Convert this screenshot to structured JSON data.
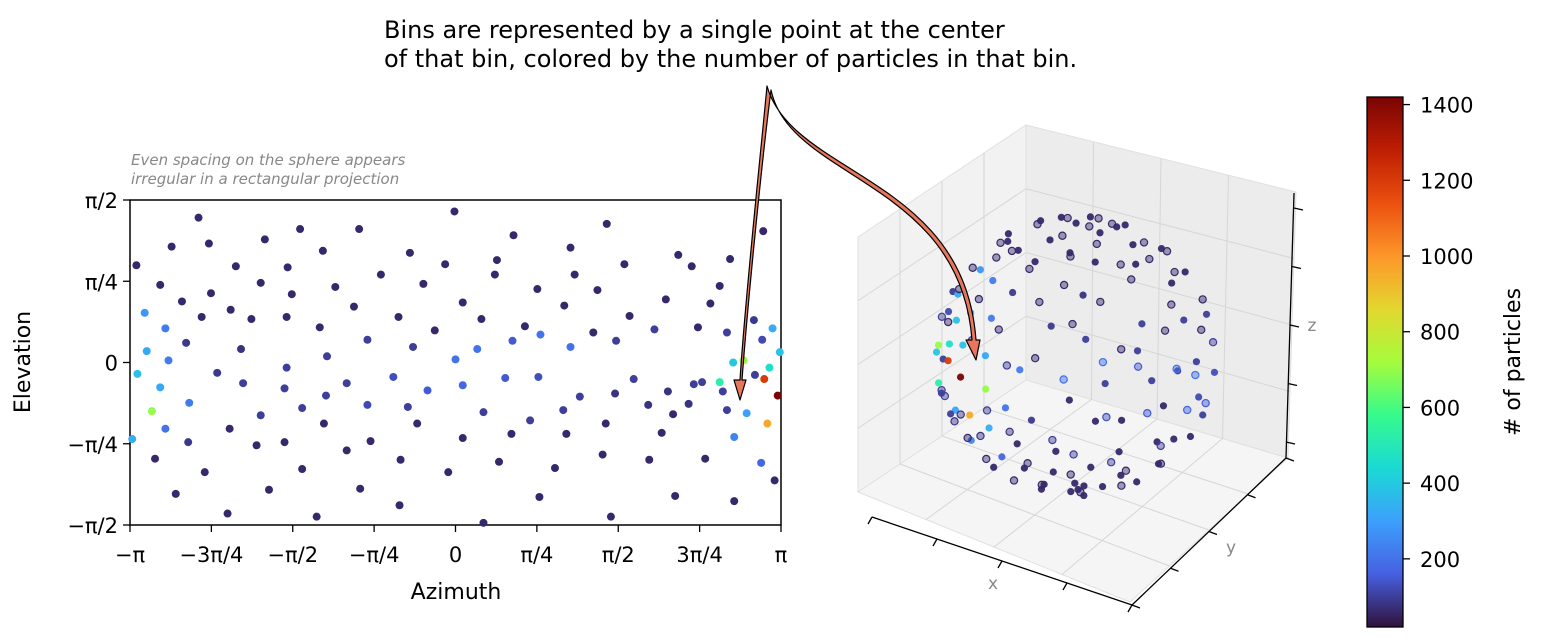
{
  "annotation": {
    "line1": "Bins are represented by a single point at the center",
    "line2": "of that bin, colored by the number of particles in that bin."
  },
  "left_panel": {
    "note_line1": "Even spacing on the sphere appears",
    "note_line2": "irregular in a rectangular projection"
  },
  "right_panel": {
    "xlabel": "x",
    "ylabel": "y",
    "zlabel": "z"
  },
  "colorbar": {
    "label": "# of particles",
    "ticks": [
      "200",
      "400",
      "600",
      "800",
      "1000",
      "1200",
      "1400"
    ],
    "range": [
      20,
      1420
    ]
  },
  "chart_data": [
    {
      "type": "scatter",
      "title": "",
      "xlabel": "Azimuth",
      "ylabel": "Elevation",
      "xlim": [
        -3.1416,
        3.1416
      ],
      "ylim": [
        -1.5708,
        1.5708
      ],
      "xtick_labels": [
        "−π",
        "−3π/4",
        "−π/2",
        "−π/4",
        "0",
        "π/4",
        "π/2",
        "3π/4",
        "π"
      ],
      "ytick_labels": [
        "−π/2",
        "−π/4",
        "0",
        "π/4",
        "π/2"
      ],
      "color_scale": "turbo",
      "points": [
        {
          "x": -3.08,
          "y": 0.94,
          "c": 60
        },
        {
          "x": -2.85,
          "y": 0.75,
          "c": 60
        },
        {
          "x": -2.74,
          "y": 1.12,
          "c": 60
        },
        {
          "x": -2.48,
          "y": 1.4,
          "c": 60
        },
        {
          "x": -2.38,
          "y": 1.15,
          "c": 60
        },
        {
          "x": -2.64,
          "y": 0.59,
          "c": 60
        },
        {
          "x": -2.36,
          "y": 0.67,
          "c": 60
        },
        {
          "x": -2.12,
          "y": 0.93,
          "c": 60
        },
        {
          "x": -1.84,
          "y": 1.19,
          "c": 60
        },
        {
          "x": -2.45,
          "y": 0.44,
          "c": 60
        },
        {
          "x": -2.17,
          "y": 0.51,
          "c": 60
        },
        {
          "x": -1.88,
          "y": 0.77,
          "c": 60
        },
        {
          "x": -1.62,
          "y": 0.92,
          "c": 60
        },
        {
          "x": -1.28,
          "y": 1.08,
          "c": 60
        },
        {
          "x": -0.93,
          "y": 1.29,
          "c": 60
        },
        {
          "x": -0.01,
          "y": 1.46,
          "c": 60
        },
        {
          "x": 0.56,
          "y": 1.23,
          "c": 60
        },
        {
          "x": 1.11,
          "y": 1.11,
          "c": 60
        },
        {
          "x": 1.46,
          "y": 1.34,
          "c": 60
        },
        {
          "x": 2.28,
          "y": 0.93,
          "c": 60
        },
        {
          "x": 2.97,
          "y": 1.27,
          "c": 60
        },
        {
          "x": -3.0,
          "y": 0.48,
          "c": 280
        },
        {
          "x": -2.8,
          "y": 0.33,
          "c": 220
        },
        {
          "x": -2.6,
          "y": 0.19,
          "c": 90
        },
        {
          "x": -2.98,
          "y": 0.11,
          "c": 320
        },
        {
          "x": -3.07,
          "y": -0.11,
          "c": 380
        },
        {
          "x": -2.85,
          "y": -0.24,
          "c": 320
        },
        {
          "x": -2.77,
          "y": 0.02,
          "c": 220
        },
        {
          "x": -2.57,
          "y": -0.39,
          "c": 220
        },
        {
          "x": -2.93,
          "y": -0.47,
          "c": 700
        },
        {
          "x": -3.12,
          "y": -0.74,
          "c": 330
        },
        {
          "x": -2.8,
          "y": -0.64,
          "c": 200
        },
        {
          "x": -2.58,
          "y": -0.77,
          "c": 90
        },
        {
          "x": -2.9,
          "y": -0.93,
          "c": 60
        },
        {
          "x": -2.7,
          "y": -1.27,
          "c": 60
        },
        {
          "x": -2.42,
          "y": -1.06,
          "c": 60
        },
        {
          "x": -2.2,
          "y": -1.46,
          "c": 60
        },
        {
          "x": -1.8,
          "y": -1.23,
          "c": 60
        },
        {
          "x": -1.34,
          "y": -1.49,
          "c": 60
        },
        {
          "x": -0.92,
          "y": -1.22,
          "c": 60
        },
        {
          "x": -0.54,
          "y": -1.38,
          "c": 60
        },
        {
          "x": 0.27,
          "y": -1.55,
          "c": 60
        },
        {
          "x": 0.81,
          "y": -1.3,
          "c": 60
        },
        {
          "x": 1.5,
          "y": -1.49,
          "c": 60
        },
        {
          "x": 2.12,
          "y": -1.29,
          "c": 60
        },
        {
          "x": 2.69,
          "y": -1.34,
          "c": 60
        },
        {
          "x": 2.95,
          "y": -0.97,
          "c": 170
        },
        {
          "x": 3.08,
          "y": -1.14,
          "c": 60
        },
        {
          "x": 2.41,
          "y": -0.93,
          "c": 60
        },
        {
          "x": 1.87,
          "y": -0.94,
          "c": 60
        },
        {
          "x": 1.42,
          "y": -0.89,
          "c": 60
        },
        {
          "x": 0.96,
          "y": -1.02,
          "c": 60
        },
        {
          "x": 0.42,
          "y": -0.96,
          "c": 60
        },
        {
          "x": -0.07,
          "y": -1.06,
          "c": 60
        },
        {
          "x": -0.53,
          "y": -0.94,
          "c": 60
        },
        {
          "x": -1.05,
          "y": -0.85,
          "c": 60
        },
        {
          "x": -1.48,
          "y": -1.03,
          "c": 60
        },
        {
          "x": -1.92,
          "y": -0.8,
          "c": 60
        },
        {
          "x": -2.18,
          "y": -0.64,
          "c": 60
        },
        {
          "x": -1.65,
          "y": -0.77,
          "c": 60
        },
        {
          "x": -1.27,
          "y": -0.59,
          "c": 60
        },
        {
          "x": -0.82,
          "y": -0.76,
          "c": 60
        },
        {
          "x": -0.37,
          "y": -0.59,
          "c": 60
        },
        {
          "x": 0.07,
          "y": -0.73,
          "c": 60
        },
        {
          "x": 0.54,
          "y": -0.69,
          "c": 60
        },
        {
          "x": 1.07,
          "y": -0.69,
          "c": 60
        },
        {
          "x": 1.45,
          "y": -0.59,
          "c": 60
        },
        {
          "x": 1.99,
          "y": -0.68,
          "c": 60
        },
        {
          "x": 2.25,
          "y": -0.4,
          "c": 80
        },
        {
          "x": 2.69,
          "y": -0.72,
          "c": 240
        },
        {
          "x": 2.81,
          "y": -0.49,
          "c": 300
        },
        {
          "x": 3.01,
          "y": -0.59,
          "c": 960
        },
        {
          "x": 2.89,
          "y": -0.12,
          "c": 100
        },
        {
          "x": 2.58,
          "y": -0.28,
          "c": 100
        },
        {
          "x": 2.38,
          "y": -0.19,
          "c": 100
        },
        {
          "x": 2.55,
          "y": -0.19,
          "c": 520
        },
        {
          "x": 2.68,
          "y": 0.0,
          "c": 390
        },
        {
          "x": 2.88,
          "y": 0.41,
          "c": 90
        },
        {
          "x": 2.96,
          "y": 0.22,
          "c": 120
        },
        {
          "x": 3.13,
          "y": 0.1,
          "c": 380
        },
        {
          "x": 3.06,
          "y": 0.33,
          "c": 330
        },
        {
          "x": 3.03,
          "y": -0.05,
          "c": 460
        },
        {
          "x": 3.11,
          "y": -0.32,
          "c": 1420
        },
        {
          "x": 2.98,
          "y": -0.16,
          "c": 1200
        },
        {
          "x": 2.78,
          "y": 0.02,
          "c": 700
        },
        {
          "x": 2.62,
          "y": -0.46,
          "c": 100
        },
        {
          "x": 2.3,
          "y": -0.21,
          "c": 100
        },
        {
          "x": 2.05,
          "y": -0.28,
          "c": 80
        },
        {
          "x": 1.72,
          "y": -0.16,
          "c": 100
        },
        {
          "x": 1.2,
          "y": -0.33,
          "c": 100
        },
        {
          "x": 0.8,
          "y": -0.14,
          "c": 130
        },
        {
          "x": 0.48,
          "y": -0.15,
          "c": 150
        },
        {
          "x": 0.07,
          "y": -0.22,
          "c": 170
        },
        {
          "x": -0.27,
          "y": -0.27,
          "c": 150
        },
        {
          "x": -0.6,
          "y": -0.14,
          "c": 130
        },
        {
          "x": -0.85,
          "y": -0.41,
          "c": 120
        },
        {
          "x": -1.25,
          "y": -0.32,
          "c": 100
        },
        {
          "x": -1.65,
          "y": -0.25,
          "c": 100
        },
        {
          "x": -2.05,
          "y": -0.2,
          "c": 100
        },
        {
          "x": -2.3,
          "y": -0.1,
          "c": 90
        },
        {
          "x": -1.88,
          "y": -0.51,
          "c": 100
        },
        {
          "x": -1.48,
          "y": -0.44,
          "c": 100
        },
        {
          "x": -1.05,
          "y": -0.2,
          "c": 100
        },
        {
          "x": -0.46,
          "y": -0.43,
          "c": 100
        },
        {
          "x": 0.27,
          "y": -0.48,
          "c": 100
        },
        {
          "x": 0.72,
          "y": -0.56,
          "c": 100
        },
        {
          "x": 1.04,
          "y": -0.46,
          "c": 100
        },
        {
          "x": 1.54,
          "y": -0.3,
          "c": 80
        },
        {
          "x": 1.86,
          "y": -0.41,
          "c": 80
        },
        {
          "x": 2.1,
          "y": -0.5,
          "c": 60
        },
        {
          "x": 1.92,
          "y": 0.32,
          "c": 100
        },
        {
          "x": 1.55,
          "y": 0.21,
          "c": 100
        },
        {
          "x": 1.11,
          "y": 0.15,
          "c": 200
        },
        {
          "x": 0.82,
          "y": 0.27,
          "c": 200
        },
        {
          "x": 0.55,
          "y": 0.21,
          "c": 150
        },
        {
          "x": 0.21,
          "y": 0.13,
          "c": 200
        },
        {
          "x": 0.0,
          "y": 0.03,
          "c": 200
        },
        {
          "x": -0.41,
          "y": 0.15,
          "c": 100
        },
        {
          "x": -0.85,
          "y": 0.22,
          "c": 100
        },
        {
          "x": -1.24,
          "y": 0.06,
          "c": 100
        },
        {
          "x": -1.63,
          "y": -0.05,
          "c": 100
        },
        {
          "x": -2.07,
          "y": 0.13,
          "c": 80
        },
        {
          "x": -1.97,
          "y": 0.42,
          "c": 60
        },
        {
          "x": -1.63,
          "y": 0.44,
          "c": 60
        },
        {
          "x": -1.31,
          "y": 0.34,
          "c": 60
        },
        {
          "x": -0.98,
          "y": 0.54,
          "c": 60
        },
        {
          "x": -0.55,
          "y": 0.44,
          "c": 60
        },
        {
          "x": -0.2,
          "y": 0.31,
          "c": 60
        },
        {
          "x": 0.25,
          "y": 0.42,
          "c": 60
        },
        {
          "x": 0.67,
          "y": 0.35,
          "c": 60
        },
        {
          "x": 1.05,
          "y": 0.55,
          "c": 60
        },
        {
          "x": 1.33,
          "y": 0.29,
          "c": 60
        },
        {
          "x": 1.68,
          "y": 0.45,
          "c": 60
        },
        {
          "x": 2.03,
          "y": 0.61,
          "c": 60
        },
        {
          "x": 2.46,
          "y": 0.57,
          "c": 60
        },
        {
          "x": 2.62,
          "y": 0.29,
          "c": 100
        },
        {
          "x": 2.34,
          "y": 0.34,
          "c": 60
        },
        {
          "x": 1.37,
          "y": 0.7,
          "c": 60
        },
        {
          "x": 0.79,
          "y": 0.71,
          "c": 60
        },
        {
          "x": 0.38,
          "y": 0.85,
          "c": 60
        },
        {
          "x": 0.07,
          "y": 0.58,
          "c": 60
        },
        {
          "x": -0.31,
          "y": 0.76,
          "c": 60
        },
        {
          "x": -0.72,
          "y": 0.85,
          "c": 60
        },
        {
          "x": -1.16,
          "y": 0.73,
          "c": 60
        },
        {
          "x": -1.58,
          "y": 0.66,
          "c": 60
        },
        {
          "x": -0.1,
          "y": 0.95,
          "c": 60
        },
        {
          "x": 0.4,
          "y": 0.99,
          "c": 60
        },
        {
          "x": 1.63,
          "y": 0.95,
          "c": 60
        },
        {
          "x": 2.15,
          "y": 1.04,
          "c": 60
        },
        {
          "x": 2.65,
          "y": 1.0,
          "c": 60
        },
        {
          "x": 2.55,
          "y": 0.74,
          "c": 60
        },
        {
          "x": 1.15,
          "y": 0.85,
          "c": 60
        },
        {
          "x": -0.44,
          "y": 1.06,
          "c": 60
        },
        {
          "x": -1.5,
          "y": 1.29,
          "c": 60
        }
      ]
    },
    {
      "type": "scatter",
      "title": "",
      "xlabel": "x",
      "ylabel": "y",
      "zlabel": "z",
      "projection": "3d",
      "color_scale": "turbo",
      "description_values": "same bins as the 2D panel, shown on a unit sphere"
    }
  ]
}
